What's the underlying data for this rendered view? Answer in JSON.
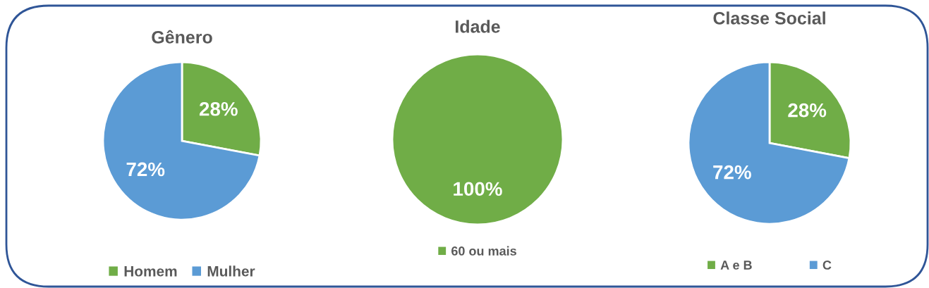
{
  "chart_data": [
    {
      "type": "pie",
      "title": "Gênero",
      "categories": [
        "Homem",
        "Mulher"
      ],
      "values": [
        28,
        72
      ],
      "value_labels": [
        "28%",
        "72%"
      ],
      "colors": [
        "#70ad47",
        "#5b9bd5"
      ],
      "legend": "bottom"
    },
    {
      "type": "pie",
      "title": "Idade",
      "categories": [
        "60 ou mais"
      ],
      "values": [
        100
      ],
      "value_labels": [
        "100%"
      ],
      "colors": [
        "#70ad47"
      ],
      "legend": "bottom"
    },
    {
      "type": "pie",
      "title": "Classe Social",
      "categories": [
        "A e B",
        "C"
      ],
      "values": [
        28,
        72
      ],
      "value_labels": [
        "28%",
        "72%"
      ],
      "colors": [
        "#70ad47",
        "#5b9bd5"
      ],
      "legend": "bottom"
    }
  ]
}
